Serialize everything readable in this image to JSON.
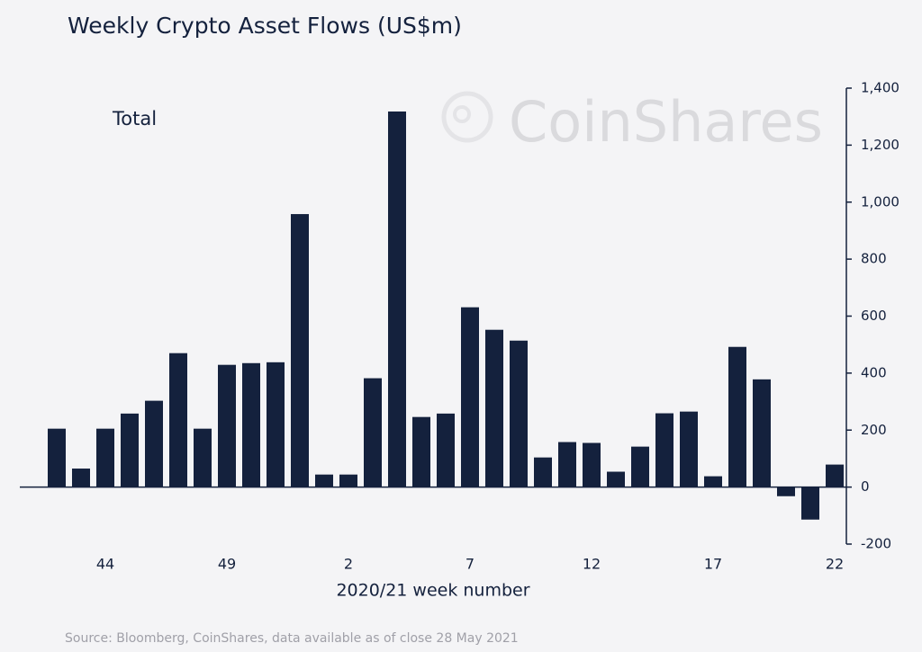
{
  "chart_data": {
    "type": "bar",
    "title": "Weekly Crypto Asset Flows (US$m)",
    "annotation": "Total",
    "watermark": "CoinShares",
    "x_label": "2020/21 week number",
    "source": "Source: Bloomberg, CoinShares, data available as of close 28 May 2021",
    "categories": [
      null,
      null,
      "44",
      null,
      null,
      null,
      null,
      "49",
      null,
      null,
      null,
      null,
      "2",
      null,
      null,
      null,
      null,
      "7",
      null,
      null,
      null,
      null,
      "12",
      null,
      null,
      null,
      null,
      "17",
      null,
      null,
      null,
      null,
      "22"
    ],
    "values": [
      205,
      65,
      205,
      258,
      303,
      470,
      205,
      429,
      435,
      438,
      958,
      44,
      44,
      382,
      1318,
      246,
      258,
      631,
      552,
      514,
      104,
      158,
      155,
      54,
      142,
      259,
      265,
      38,
      492,
      378,
      -32,
      -114,
      79
    ],
    "color": "#14213d",
    "ylim": [
      -200,
      1400
    ],
    "yticks": [
      -200,
      0,
      200,
      400,
      600,
      800,
      {
        "value": 1000,
        "label": "1,000"
      },
      {
        "value": 1200,
        "label": "1,200"
      },
      {
        "value": 1400,
        "label": "1,400"
      }
    ],
    "y_axis_side": "right"
  }
}
